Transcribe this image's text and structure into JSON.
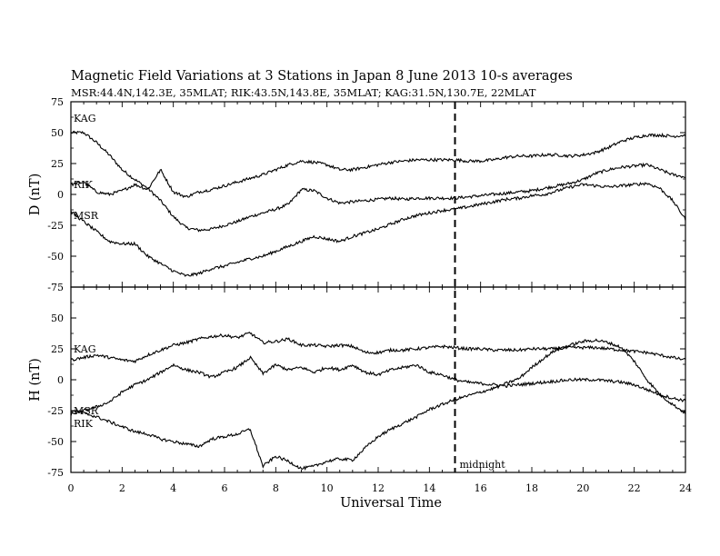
{
  "chart_data": {
    "type": "line",
    "title": "Magnetic Field Variations at 3 Stations in Japan        8   June      2013      10-s averages",
    "subtitle": "MSR:44.4N,142.3E, 35MLAT;   RIK:43.5N,143.8E, 35MLAT;   KAG:31.5N,130.7E, 22MLAT",
    "xlabel": "Universal Time",
    "xlim": [
      0,
      24
    ],
    "xticks": [
      "0",
      "2",
      "4",
      "6",
      "8",
      "10",
      "12",
      "14",
      "16",
      "18",
      "20",
      "22",
      "24"
    ],
    "marker": {
      "x": 15,
      "label": "midnight"
    },
    "grid": false,
    "panels": [
      {
        "ylabel": "D (nT)",
        "ylim": [
          -75,
          75
        ],
        "yticks": [
          "75",
          "50",
          "25",
          "0",
          "-25",
          "-50",
          "-75"
        ],
        "series": [
          {
            "name": "KAG",
            "x": [
              0,
              0.5,
              1,
              1.5,
              2,
              2.5,
              3,
              3.5,
              4,
              4.5,
              5,
              5.5,
              6,
              6.5,
              7,
              7.5,
              8,
              8.5,
              9,
              9.5,
              10,
              10.5,
              11,
              11.5,
              12,
              12.5,
              13,
              13.5,
              14,
              14.5,
              15,
              15.5,
              16,
              16.5,
              17,
              17.5,
              18,
              18.5,
              19,
              19.5,
              20,
              20.5,
              21,
              21.5,
              22,
              22.5,
              23,
              23.5,
              24
            ],
            "values": [
              50,
              50,
              42,
              32,
              20,
              12,
              5,
              -5,
              -18,
              -27,
              -29,
              -28,
              -25,
              -22,
              -18,
              -15,
              -12,
              -8,
              4,
              3,
              -3,
              -7,
              -6,
              -5,
              -4,
              -3,
              -4,
              -3,
              -3,
              -3,
              -3,
              -2,
              -1,
              0,
              1,
              2,
              3,
              5,
              7,
              9,
              12,
              17,
              20,
              22,
              23,
              24,
              20,
              16,
              14
            ]
          },
          {
            "name": "RIK",
            "x": [
              0,
              0.5,
              1,
              1.5,
              2,
              2.5,
              3,
              3.5,
              4,
              4.5,
              5,
              5.5,
              6,
              6.5,
              7,
              7.5,
              8,
              8.5,
              9,
              9.5,
              10,
              10.5,
              11,
              11.5,
              12,
              12.5,
              13,
              13.5,
              14,
              14.5,
              15,
              15.5,
              16,
              16.5,
              17,
              17.5,
              18,
              18.5,
              19,
              19.5,
              20,
              20.5,
              21,
              21.5,
              22,
              22.5,
              23,
              23.5,
              24
            ],
            "values": [
              8,
              10,
              2,
              0,
              3,
              8,
              4,
              20,
              2,
              -2,
              2,
              4,
              7,
              10,
              13,
              16,
              20,
              24,
              27,
              26,
              24,
              20,
              20,
              22,
              24,
              26,
              27,
              28,
              28,
              28,
              28,
              27,
              27,
              28,
              30,
              31,
              31,
              32,
              32,
              31,
              32,
              34,
              38,
              43,
              46,
              48,
              48,
              47,
              48
            ]
          },
          {
            "name": "MSR",
            "x": [
              0,
              0.5,
              1,
              1.5,
              2,
              2.5,
              3,
              3.5,
              4,
              4.5,
              5,
              5.5,
              6,
              6.5,
              7,
              7.5,
              8,
              8.5,
              9,
              9.5,
              10,
              10.5,
              11,
              11.5,
              12,
              12.5,
              13,
              13.5,
              14,
              14.5,
              15,
              15.5,
              16,
              16.5,
              17,
              17.5,
              18,
              18.5,
              19,
              19.5,
              20,
              20.5,
              21,
              21.5,
              22,
              22.5,
              23,
              23.5,
              24
            ],
            "values": [
              -14,
              -22,
              -30,
              -38,
              -40,
              -40,
              -50,
              -56,
              -62,
              -66,
              -64,
              -60,
              -58,
              -55,
              -52,
              -50,
              -46,
              -42,
              -38,
              -34,
              -36,
              -38,
              -34,
              -31,
              -28,
              -24,
              -20,
              -17,
              -15,
              -13,
              -12,
              -10,
              -8,
              -6,
              -4,
              -3,
              -1,
              0,
              3,
              6,
              8,
              7,
              6,
              7,
              8,
              9,
              5,
              -5,
              -20
            ]
          }
        ]
      },
      {
        "ylabel": "H (nT)",
        "ylim": [
          -75,
          75
        ],
        "yticks": [
          "75",
          "50",
          "25",
          "0",
          "-25",
          "-50",
          "-75"
        ],
        "series": [
          {
            "name": "KAG",
            "x": [
              0,
              0.5,
              1,
              1.5,
              2,
              2.5,
              3,
              3.5,
              4,
              4.5,
              5,
              5.5,
              6,
              6.5,
              7,
              7.5,
              8,
              8.5,
              9,
              9.5,
              10,
              10.5,
              11,
              11.5,
              12,
              12.5,
              13,
              13.5,
              14,
              14.5,
              15,
              15.5,
              16,
              16.5,
              17,
              17.5,
              18,
              18.5,
              19,
              19.5,
              20,
              20.5,
              21,
              21.5,
              22,
              22.5,
              23,
              23.5,
              24
            ],
            "values": [
              16,
              18,
              20,
              18,
              16,
              15,
              20,
              24,
              28,
              30,
              33,
              35,
              36,
              34,
              38,
              30,
              31,
              33,
              28,
              28,
              27,
              28,
              27,
              22,
              22,
              24,
              24,
              25,
              26,
              27,
              26,
              25,
              25,
              24,
              24,
              24,
              25,
              25,
              25,
              26,
              26,
              26,
              25,
              24,
              23,
              22,
              20,
              18,
              16
            ]
          },
          {
            "name": "RIK",
            "x": [
              0,
              0.5,
              1,
              1.5,
              2,
              2.5,
              3,
              3.5,
              4,
              4.5,
              5,
              5.5,
              6,
              6.5,
              7,
              7.5,
              8,
              8.5,
              9,
              9.5,
              10,
              10.5,
              11,
              11.5,
              12,
              12.5,
              13,
              13.5,
              14,
              14.5,
              15,
              15.5,
              16,
              16.5,
              17,
              17.5,
              18,
              18.5,
              19,
              19.5,
              20,
              20.5,
              21,
              21.5,
              22,
              22.5,
              23,
              23.5,
              24
            ],
            "values": [
              -28,
              -25,
              -22,
              -18,
              -10,
              -4,
              0,
              6,
              12,
              8,
              6,
              2,
              6,
              10,
              18,
              5,
              12,
              8,
              10,
              6,
              10,
              8,
              12,
              6,
              4,
              8,
              10,
              12,
              6,
              4,
              0,
              -2,
              -3,
              -4,
              -5,
              -4,
              -3,
              -2,
              -1,
              0,
              0,
              0,
              -1,
              -2,
              -4,
              -8,
              -12,
              -15,
              -17
            ]
          },
          {
            "name": "MSR",
            "x": [
              0,
              0.5,
              1,
              1.5,
              2,
              2.5,
              3,
              3.5,
              4,
              4.5,
              5,
              5.5,
              6,
              6.5,
              7,
              7.5,
              8,
              8.5,
              9,
              9.5,
              10,
              10.5,
              11,
              11.5,
              12,
              12.5,
              13,
              13.5,
              14,
              14.5,
              15,
              15.5,
              16,
              16.5,
              17,
              17.5,
              18,
              18.5,
              19,
              19.5,
              20,
              20.5,
              21,
              21.5,
              22,
              22.5,
              23,
              23.5,
              24
            ],
            "values": [
              -25,
              -27,
              -30,
              -34,
              -38,
              -42,
              -44,
              -48,
              -50,
              -52,
              -54,
              -48,
              -46,
              -44,
              -40,
              -70,
              -62,
              -66,
              -72,
              -70,
              -66,
              -64,
              -65,
              -55,
              -46,
              -40,
              -35,
              -30,
              -24,
              -20,
              -16,
              -13,
              -10,
              -7,
              -3,
              1,
              10,
              18,
              25,
              28,
              31,
              32,
              30,
              26,
              15,
              0,
              -12,
              -20,
              -27
            ]
          }
        ]
      }
    ]
  }
}
